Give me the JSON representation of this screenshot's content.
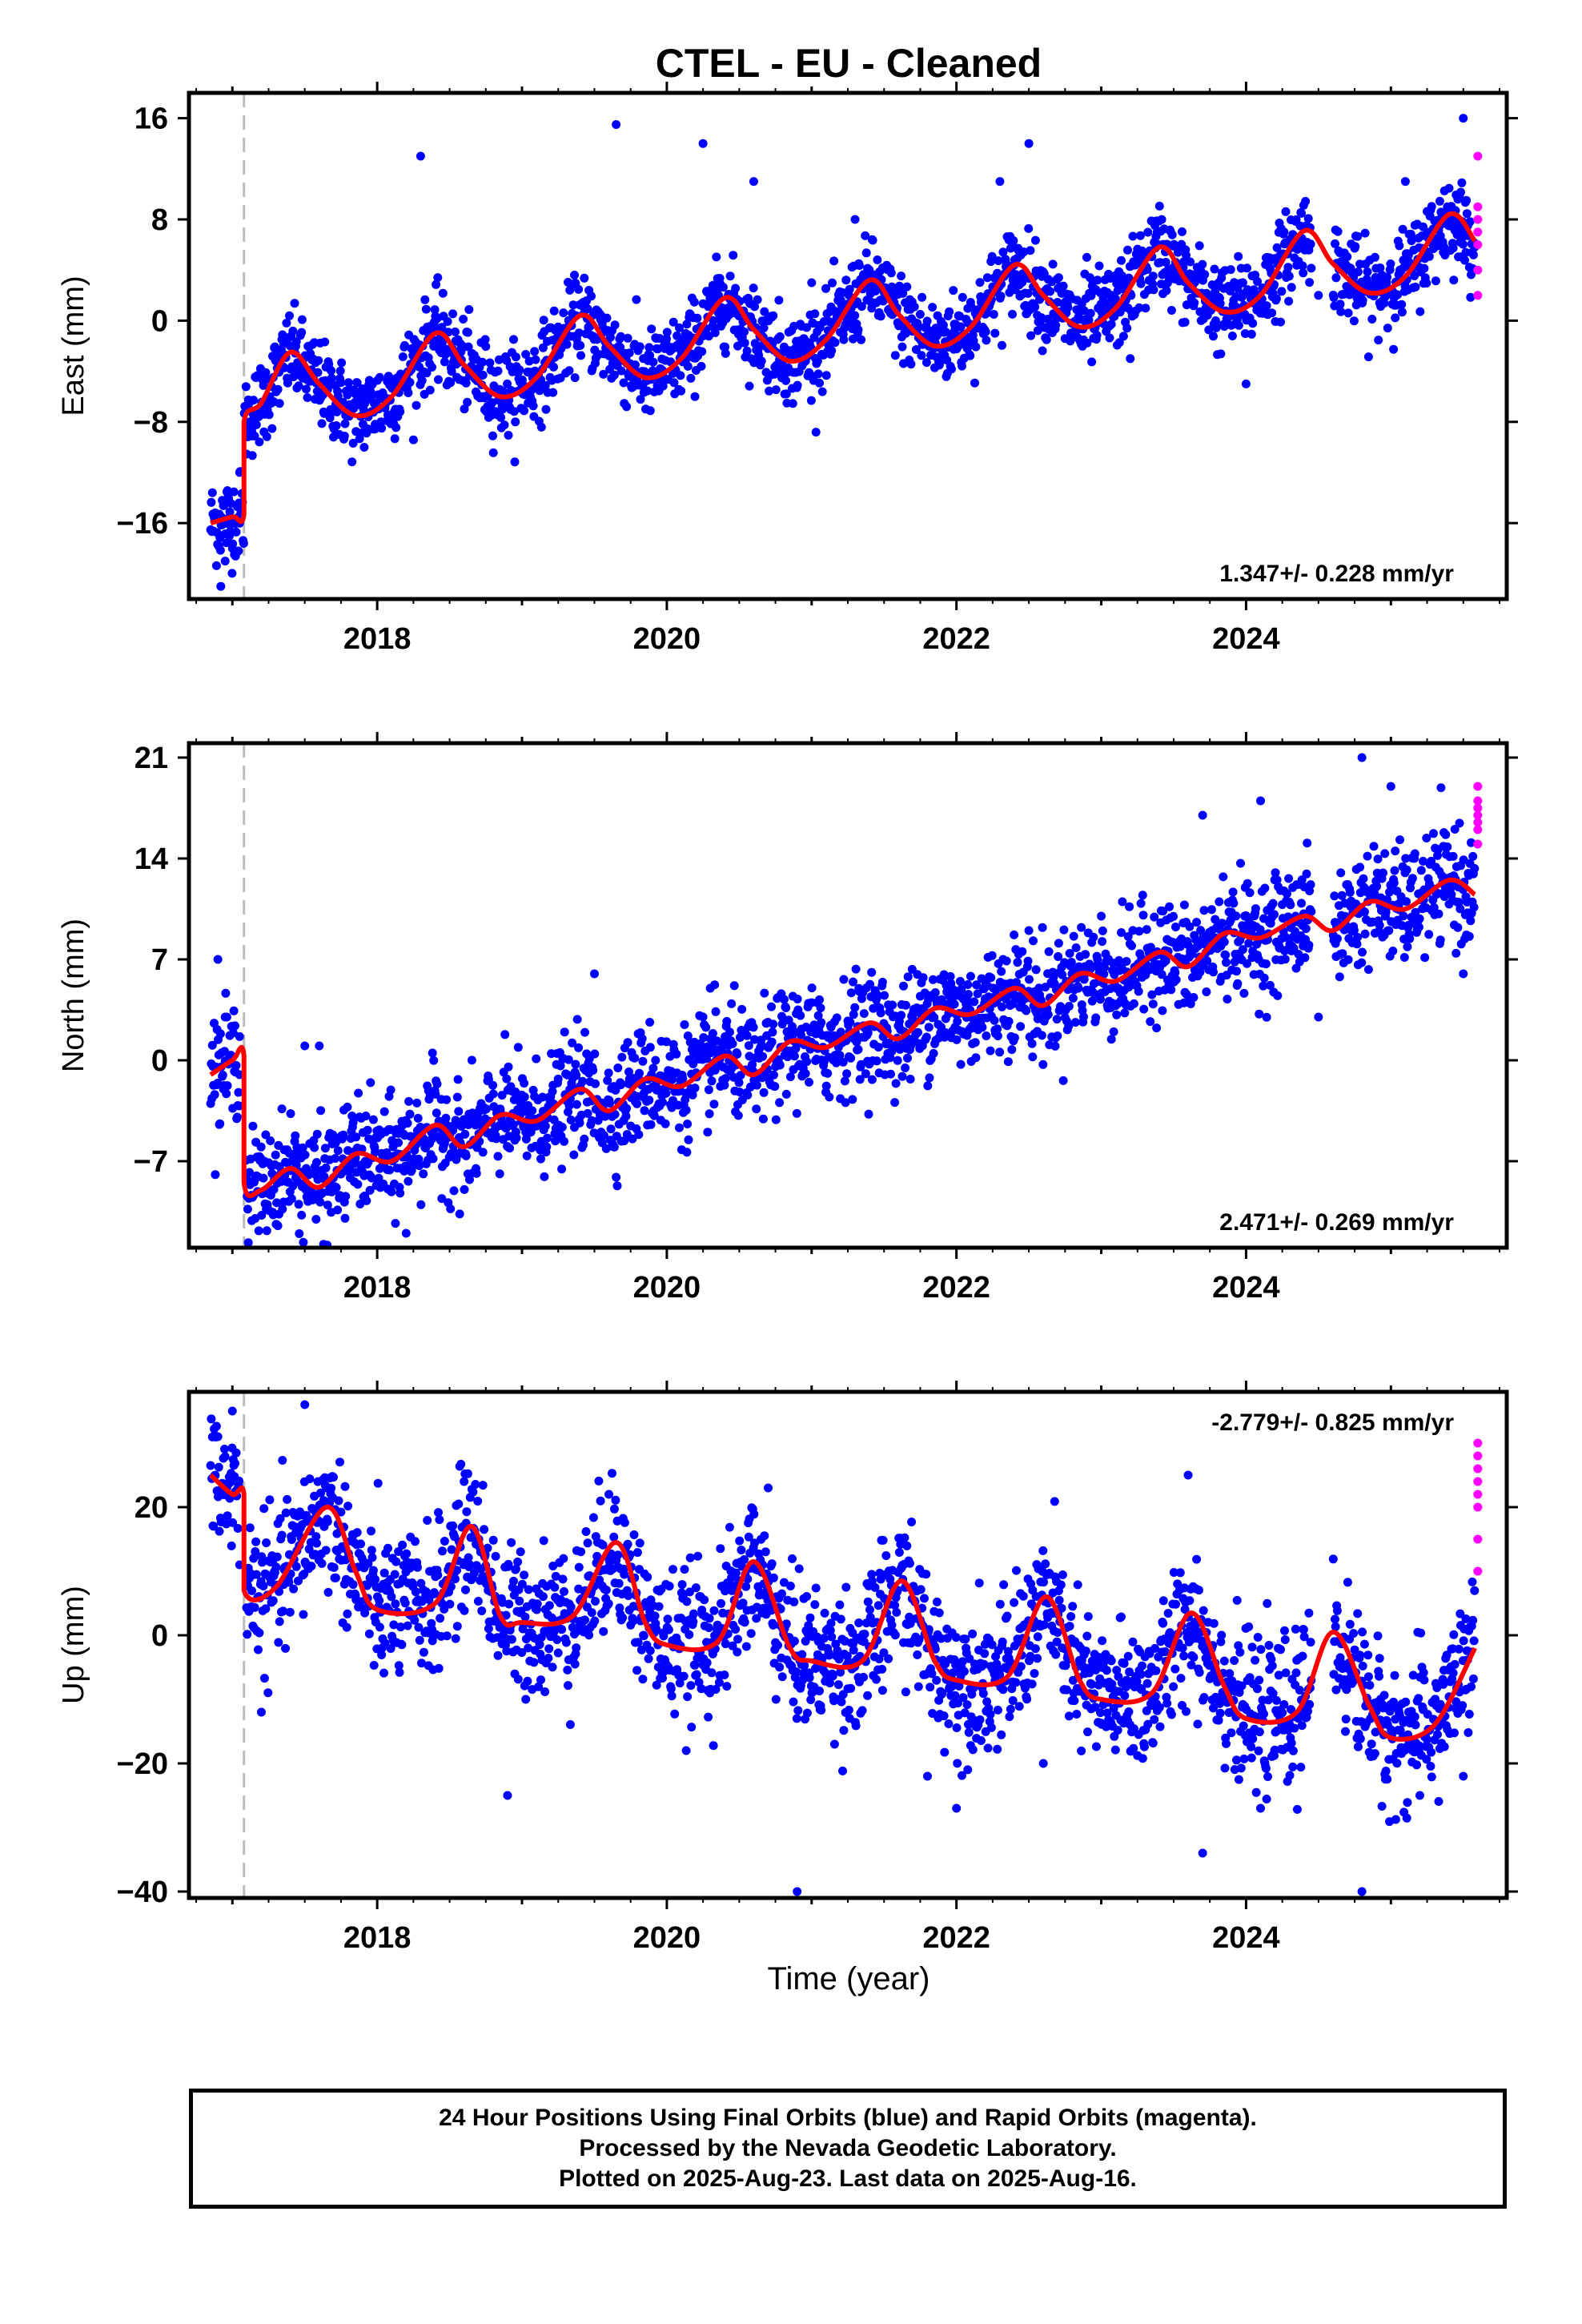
{
  "title": "CTEL  - EU - Cleaned",
  "xlabel": "Time (year)",
  "footer": {
    "line1": "24 Hour Positions Using Final Orbits (blue) and Rapid Orbits (magenta).",
    "line2": "Processed by the Nevada Geodetic Laboratory.",
    "line3": "Plotted on 2025-Aug-23. Last data on 2025-Aug-16."
  },
  "colors": {
    "final_orbits": "#0000ff",
    "rapid_orbits": "#ff00ff",
    "model": "#ff0000",
    "step_line": "#bbbbbb",
    "frame": "#000000"
  },
  "chart_data": [
    {
      "type": "scatter",
      "component": "east",
      "ylabel": "East (mm)",
      "rate_label": "1.347+/- 0.228 mm/yr",
      "rate_position": "bottom-right",
      "xlim": [
        2016.7,
        2025.8
      ],
      "ylim": [
        -22,
        18
      ],
      "xticks": [
        2018,
        2020,
        2022,
        2024
      ],
      "yticks": [
        -16,
        -8,
        0,
        8,
        16
      ],
      "step_epoch": 2017.08,
      "model": {
        "x": [
          2016.85,
          2017.0,
          2017.08,
          2017.08,
          2017.2,
          2017.4,
          2017.6,
          2017.85,
          2018.1,
          2018.4,
          2018.6,
          2018.85,
          2019.1,
          2019.4,
          2019.6,
          2019.85,
          2020.1,
          2020.4,
          2020.6,
          2020.85,
          2021.1,
          2021.4,
          2021.6,
          2021.85,
          2022.1,
          2022.4,
          2022.6,
          2022.85,
          2023.1,
          2023.4,
          2023.6,
          2023.85,
          2024.1,
          2024.4,
          2024.6,
          2024.85,
          2025.1,
          2025.4,
          2025.58
        ],
        "y": [
          -16,
          -15.5,
          -15.3,
          -8,
          -6.5,
          -2.5,
          -5,
          -7.5,
          -6,
          -1,
          -3.5,
          -6,
          -4.5,
          0.4,
          -2,
          -4.5,
          -3,
          1.8,
          -0.7,
          -3.2,
          -1.5,
          3.2,
          0.5,
          -2,
          -0.5,
          4.4,
          2,
          -0.5,
          1,
          5.8,
          3,
          0.7,
          2,
          7.1,
          4.5,
          2.2,
          3.5,
          8.4,
          6.3
        ]
      },
      "series": [
        {
          "name": "Final Orbits",
          "color": "#0000ff",
          "x": [
            2016.92,
            2016.95,
            2016.98,
            2017.0,
            2017.05,
            2017.12,
            2017.3,
            2018.3,
            2019.65,
            2020.25,
            2020.6,
            2021.0,
            2021.3,
            2022.3,
            2022.5,
            2022.9,
            2023.2,
            2024.0,
            2024.5,
            2025.1,
            2025.5
          ],
          "y": [
            -21,
            -19,
            -17,
            -18,
            -12,
            -8,
            -3,
            13,
            15.5,
            14,
            11,
            3,
            8,
            11,
            14,
            5,
            -3,
            -5,
            2,
            11,
            16
          ]
        },
        {
          "name": "Rapid Orbits",
          "color": "#ff00ff",
          "x": [
            2025.6,
            2025.6,
            2025.6,
            2025.6,
            2025.6,
            2025.6,
            2025.6
          ],
          "y": [
            13,
            9,
            8,
            7,
            6,
            4,
            2
          ]
        }
      ]
    },
    {
      "type": "scatter",
      "component": "north",
      "ylabel": "North (mm)",
      "rate_label": "2.471+/- 0.269 mm/yr",
      "rate_position": "bottom-right",
      "xlim": [
        2016.7,
        2025.8
      ],
      "ylim": [
        -13,
        22
      ],
      "xticks": [
        2018,
        2020,
        2022,
        2024
      ],
      "yticks": [
        -7,
        0,
        7,
        14,
        21
      ],
      "step_epoch": 2017.08,
      "model": {
        "x": [
          2016.85,
          2017.0,
          2017.08,
          2017.08,
          2017.2,
          2017.4,
          2017.6,
          2017.85,
          2018.1,
          2018.4,
          2018.6,
          2018.85,
          2019.1,
          2019.4,
          2019.6,
          2019.85,
          2020.1,
          2020.4,
          2020.6,
          2020.85,
          2021.1,
          2021.4,
          2021.6,
          2021.85,
          2022.1,
          2022.4,
          2022.6,
          2022.85,
          2023.1,
          2023.4,
          2023.6,
          2023.85,
          2024.1,
          2024.4,
          2024.6,
          2024.85,
          2025.1,
          2025.4,
          2025.58
        ],
        "y": [
          -1,
          0,
          0.3,
          -8.5,
          -9,
          -7.5,
          -8.8,
          -6.5,
          -7,
          -4.5,
          -6,
          -3.8,
          -4.2,
          -2,
          -3.5,
          -1.3,
          -1.8,
          0.3,
          -1,
          1.3,
          0.9,
          2.6,
          1.5,
          3.6,
          3.2,
          5,
          3.8,
          6,
          5.5,
          7.5,
          6.5,
          8.8,
          8.5,
          10,
          9,
          11,
          10.5,
          12.5,
          11.5
        ]
      },
      "series": [
        {
          "name": "Final Orbits",
          "color": "#0000ff",
          "x": [
            2016.9,
            2016.95,
            2017.05,
            2017.5,
            2017.6,
            2018.2,
            2019.5,
            2020.3,
            2021.0,
            2022.5,
            2023.0,
            2023.7,
            2024.1,
            2024.5,
            2024.8,
            2025.0,
            2025.5
          ],
          "y": [
            7,
            3,
            -1,
            1,
            1,
            -12,
            6,
            5,
            4,
            9,
            10,
            17,
            18,
            3,
            21,
            19,
            6
          ]
        },
        {
          "name": "Rapid Orbits",
          "color": "#ff00ff",
          "x": [
            2025.6,
            2025.6,
            2025.6,
            2025.6,
            2025.6,
            2025.6,
            2025.6
          ],
          "y": [
            19,
            18,
            17.5,
            17,
            16.5,
            16,
            15
          ]
        }
      ]
    },
    {
      "type": "scatter",
      "component": "up",
      "ylabel": "Up (mm)",
      "rate_label": "-2.779+/- 0.825 mm/yr",
      "rate_position": "top-right",
      "xlim": [
        2016.7,
        2025.8
      ],
      "ylim": [
        -41,
        38
      ],
      "xticks": [
        2018,
        2020,
        2022,
        2024
      ],
      "yticks": [
        -40,
        -20,
        0,
        20
      ],
      "step_epoch": 2017.08,
      "model": {
        "x": [
          2016.85,
          2017.0,
          2017.08,
          2017.08,
          2017.3,
          2017.65,
          2017.85,
          2018.0,
          2018.4,
          2018.65,
          2018.85,
          2019.0,
          2019.35,
          2019.65,
          2019.85,
          2020.0,
          2020.35,
          2020.6,
          2020.85,
          2021.0,
          2021.35,
          2021.62,
          2021.85,
          2022.0,
          2022.35,
          2022.62,
          2022.85,
          2023.0,
          2023.35,
          2023.62,
          2023.85,
          2024.0,
          2024.35,
          2024.6,
          2024.85,
          2025.0,
          2025.3,
          2025.58
        ],
        "y": [
          25,
          22,
          22,
          7,
          7.5,
          20,
          10,
          4,
          5,
          17,
          3,
          2,
          3,
          14.5,
          2,
          -1.5,
          -1,
          11.5,
          -2,
          -4,
          -4,
          8.5,
          -4,
          -7,
          -6.5,
          6,
          -7,
          -10,
          -9,
          3.5,
          -8,
          -13,
          -12,
          0.5,
          -11,
          -16,
          -14,
          -2
        ]
      },
      "series": [
        {
          "name": "Final Orbits",
          "color": "#0000ff",
          "x": [
            2016.9,
            2017.0,
            2017.2,
            2017.5,
            2018.6,
            2018.9,
            2019.6,
            2020.7,
            2020.9,
            2021.8,
            2022.0,
            2022.6,
            2023.6,
            2023.7,
            2024.1,
            2024.8,
            2025.2,
            2025.5
          ],
          "y": [
            31,
            35,
            -12,
            36,
            24,
            -25,
            22,
            23,
            -40,
            -22,
            -27,
            -20,
            25,
            -34,
            -27,
            -40,
            -25,
            -22
          ]
        },
        {
          "name": "Rapid Orbits",
          "color": "#ff00ff",
          "x": [
            2025.6,
            2025.6,
            2025.6,
            2025.6,
            2025.6,
            2025.6,
            2025.6,
            2025.6
          ],
          "y": [
            30,
            28,
            26,
            24,
            22,
            20,
            15,
            10
          ]
        }
      ]
    }
  ]
}
